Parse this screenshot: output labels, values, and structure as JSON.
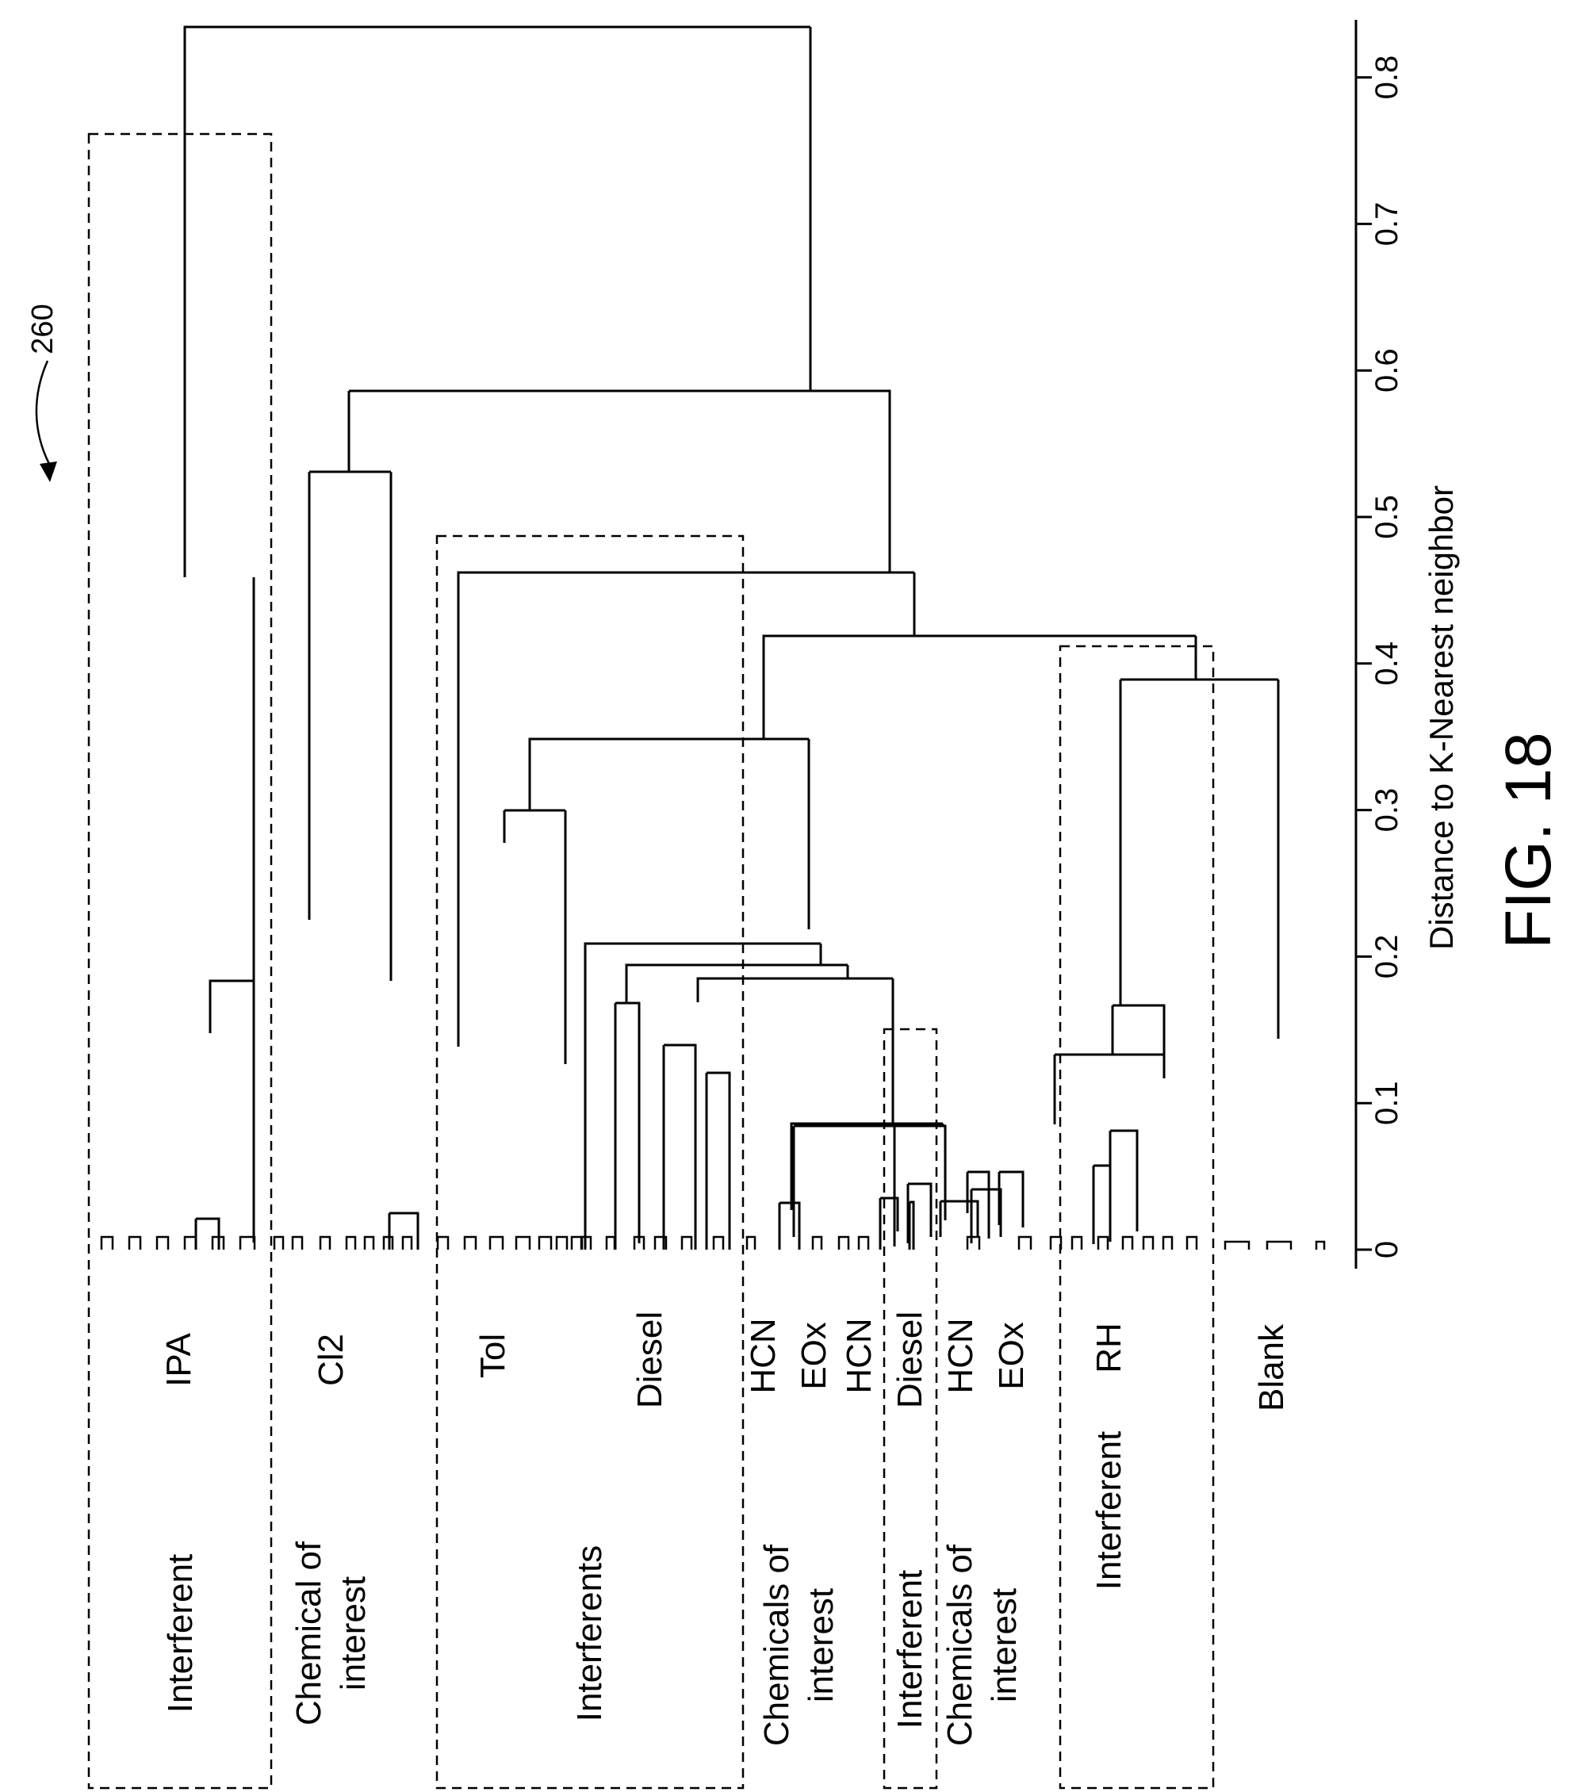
{
  "figure": {
    "ref_numeral": "260",
    "caption": "FIG. 18"
  },
  "chart_data": {
    "type": "dendrogram",
    "orientation": "rotated",
    "axis": {
      "label": "Distance to K-Nearest neighbor",
      "range": [
        0,
        0.83
      ],
      "ticks": [
        0,
        0.1,
        0.2,
        0.3,
        0.4,
        0.5,
        0.6,
        0.7,
        0.8
      ],
      "tick_labels": [
        "0",
        "0.1",
        "0.2",
        "0.3",
        "0.4",
        "0.5",
        "0.6",
        "0.7",
        "0.8"
      ]
    },
    "leaf_labels": [
      {
        "text": "IPA"
      },
      {
        "text": "Cl2"
      },
      {
        "text": "Tol"
      },
      {
        "text": "Diesel"
      },
      {
        "text": "HCN"
      },
      {
        "text": "EOx"
      },
      {
        "text": "HCN"
      },
      {
        "text": "Diesel"
      },
      {
        "text": "HCN"
      },
      {
        "text": "EOx"
      },
      {
        "text": "RH"
      },
      {
        "text": "Blank"
      }
    ],
    "groups": [
      {
        "lines": [
          "Interferent"
        ],
        "boxed": true
      },
      {
        "lines": [
          "Chemical of",
          "interest"
        ],
        "boxed": false
      },
      {
        "lines": [
          "Interferents"
        ],
        "boxed": true
      },
      {
        "lines": [
          "Chemicals of",
          "interest"
        ],
        "boxed": false
      },
      {
        "lines": [
          "Interferent"
        ],
        "boxed": true
      },
      {
        "lines": [
          "Chemicals of",
          "interest"
        ],
        "boxed": false
      },
      {
        "lines": [
          "Interferent"
        ],
        "boxed": true
      }
    ],
    "merge_heights": [
      0.83,
      0.585,
      0.53,
      0.46,
      0.46,
      0.415,
      0.415,
      0.385,
      0.345,
      0.28,
      0.225,
      0.205,
      0.19,
      0.185,
      0.185,
      0.18,
      0.165,
      0.14,
      0.14,
      0.13,
      0.13,
      0.085,
      0.085,
      0.08,
      0.065,
      0.055,
      0.05,
      0.045,
      0.04,
      0.03,
      0.02
    ]
  }
}
